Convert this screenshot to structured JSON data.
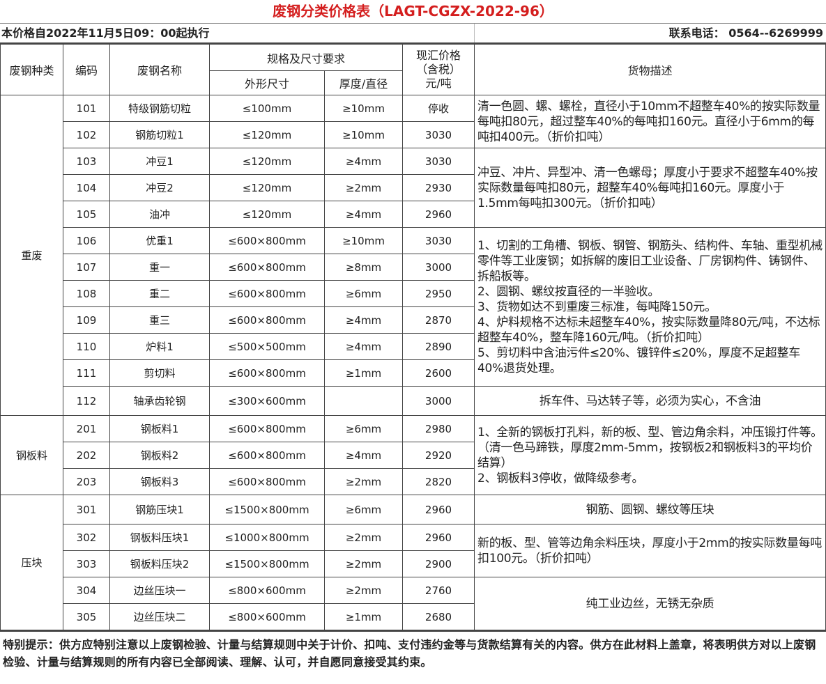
{
  "title": "废钢分类价格表（LAGT-CGZX-2022-96）",
  "effective_date": "本价格自2022年11月5日09：00起执行",
  "contact": "联系电话：  0564--6269999",
  "headers": {
    "category": "废钢种类",
    "code": "编码",
    "name": "废钢名称",
    "spec": "规格及尺寸要求",
    "outer_size": "外形尺寸",
    "thickness": "厚度/直径",
    "price": "现汇价格\n（含税）\n元/吨",
    "description": "货物描述"
  },
  "groups": [
    {
      "category": "重废",
      "rows": [
        {
          "code": "101",
          "name": "特级钢筋切粒",
          "size": "≤100mm",
          "thickness": "≥10mm",
          "price": "停收"
        },
        {
          "code": "102",
          "name": "钢筋切粒1",
          "size": "≤120mm",
          "thickness": "≥10mm",
          "price": "3030"
        },
        {
          "code": "103",
          "name": "冲豆1",
          "size": "≤120mm",
          "thickness": "≥4mm",
          "price": "3030"
        },
        {
          "code": "104",
          "name": "冲豆2",
          "size": "≤120mm",
          "thickness": "≥2mm",
          "price": "2930"
        },
        {
          "code": "105",
          "name": "油冲",
          "size": "≤120mm",
          "thickness": "≥4mm",
          "price": "2960"
        },
        {
          "code": "106",
          "name": "优重1",
          "size": "≤600×800mm",
          "thickness": "≥10mm",
          "price": "3030"
        },
        {
          "code": "107",
          "name": "重一",
          "size": "≤600×800mm",
          "thickness": "≥8mm",
          "price": "3000"
        },
        {
          "code": "108",
          "name": "重二",
          "size": "≤600×800mm",
          "thickness": "≥6mm",
          "price": "2950"
        },
        {
          "code": "109",
          "name": "重三",
          "size": "≤600×800mm",
          "thickness": "≥4mm",
          "price": "2870"
        },
        {
          "code": "110",
          "name": "炉料1",
          "size": "≤500×500mm",
          "thickness": "≥4mm",
          "price": "2890"
        },
        {
          "code": "111",
          "name": "剪切料",
          "size": "≤600×800mm",
          "thickness": "≥1mm",
          "price": "2600"
        },
        {
          "code": "112",
          "name": "轴承齿轮钢",
          "size": "≤300×600mm",
          "thickness": "",
          "price": "3000"
        }
      ],
      "descriptions": [
        {
          "span": 2,
          "text": "清一色圆、螺、螺栓，直径小于10mm不超整车40%的按实际数量每吨扣80元，超过整车40%的每吨扣160元。直径小于6mm的每吨扣400元。（折价扣吨）"
        },
        {
          "span": 3,
          "text": "冲豆、冲片、异型冲、清一色螺母；厚度小于要求不超整车40%按实际数量每吨扣80元，超整车40%每吨扣160元。厚度小于1.5mm每吨扣300元。（折价扣吨）"
        },
        {
          "span": 6,
          "text": "1、切割的工角槽、钢板、钢管、钢筋头、结构件、车轴、重型机械零件等工业废钢；如拆解的废旧工业设备、厂房钢构件、铸钢件、拆船板等。\n2、圆钢、螺纹按直径的一半验收。\n3、货物如达不到重废三标准，每吨降150元。\n4、炉料规格不达标未超整车40%，按实际数量降80元/吨，不达标超整车40%，整车降160元/吨。（折价扣吨）\n5、剪切料中含油污件≤20%、镀锌件≤20%，厚度不足超整车40%退货处理。"
        },
        {
          "span": 1,
          "center": true,
          "text": "拆车件、马达转子等，必须为实心，不含油"
        }
      ]
    },
    {
      "category": "钢板料",
      "rows": [
        {
          "code": "201",
          "name": "钢板料1",
          "size": "≤600×800mm",
          "thickness": "≥6mm",
          "price": "2980"
        },
        {
          "code": "202",
          "name": "钢板料2",
          "size": "≤600×800mm",
          "thickness": "≥4mm",
          "price": "2920"
        },
        {
          "code": "203",
          "name": "钢板料3",
          "size": "≤600×800mm",
          "thickness": "≥2mm",
          "price": "2820"
        }
      ],
      "descriptions": [
        {
          "span": 3,
          "text": "1、全新的钢板打孔料，新的板、型、管边角余料，冲压锻打件等。（清一色马蹄铁，厚度2mm-5mm，按钢板2和钢板料3的平均价结算）\n2、钢板料3停收，做降级参考。"
        }
      ]
    },
    {
      "category": "压块",
      "rows": [
        {
          "code": "301",
          "name": "钢筋压块1",
          "size": "≤1500×800mm",
          "thickness": "≥6mm",
          "price": "2960"
        },
        {
          "code": "302",
          "name": "钢板料压块1",
          "size": "≤1000×800mm",
          "thickness": "≥2mm",
          "price": "2960"
        },
        {
          "code": "303",
          "name": "钢板料压块2",
          "size": "≤1500×800mm",
          "thickness": "≥2mm",
          "price": "2900"
        },
        {
          "code": "304",
          "name": "边丝压块一",
          "size": "≤800×600mm",
          "thickness": "≥2mm",
          "price": "2760"
        },
        {
          "code": "305",
          "name": "边丝压块二",
          "size": "≤800×600mm",
          "thickness": "≥1mm",
          "price": "2680"
        }
      ],
      "descriptions": [
        {
          "span": 1,
          "center": true,
          "text": "钢筋、圆钢、螺纹等压块"
        },
        {
          "span": 2,
          "text": "新的板、型、管等边角余料压块，厚度小于2mm的按实际数量每吨扣100元。（折价扣吨）"
        },
        {
          "span": 2,
          "center": true,
          "text": "纯工业边丝，无锈无杂质"
        }
      ]
    }
  ],
  "footer": "特别提示：供方应特别注意以上废钢检验、计量与结算规则中关于计价、扣吨、支付违约金等与货款结算有关的内容。供方在此材料上盖章，将表明供方对以上废钢检验、计量与结算规则的所有内容已全部阅读、理解、认可，并自愿同意接受其约束。",
  "colors": {
    "title": "#d41e1e"
  }
}
